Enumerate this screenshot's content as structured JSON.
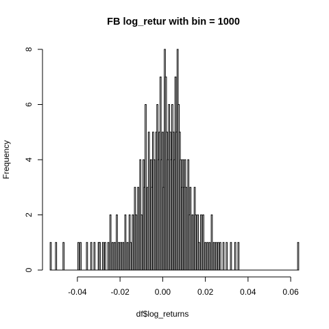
{
  "chart_data": {
    "type": "bar",
    "title": "FB log_retur with bin = 1000",
    "xlabel": "df$log_returns",
    "ylabel": "Frequency",
    "xlim": [
      -0.0525,
      0.0635
    ],
    "ylim": [
      0,
      8
    ],
    "x_ticks": [
      -0.04,
      -0.02,
      0.0,
      0.02,
      0.04,
      0.06
    ],
    "x_tick_labels": [
      "-0.04",
      "-0.02",
      "0.00",
      "0.02",
      "0.04",
      "0.06"
    ],
    "y_ticks": [
      0,
      2,
      4,
      6,
      8
    ],
    "y_tick_labels": [
      "0",
      "2",
      "4",
      "6",
      "8"
    ],
    "grid": false,
    "bars": [
      {
        "x": -0.0525,
        "count": 1
      },
      {
        "x": -0.05,
        "count": 1
      },
      {
        "x": -0.0465,
        "count": 1
      },
      {
        "x": -0.0395,
        "count": 1
      },
      {
        "x": -0.0385,
        "count": 1
      },
      {
        "x": -0.0355,
        "count": 1
      },
      {
        "x": -0.0335,
        "count": 1
      },
      {
        "x": -0.032,
        "count": 1
      },
      {
        "x": -0.03,
        "count": 1
      },
      {
        "x": -0.0295,
        "count": 1
      },
      {
        "x": -0.028,
        "count": 1
      },
      {
        "x": -0.027,
        "count": 1
      },
      {
        "x": -0.0255,
        "count": 1
      },
      {
        "x": -0.0245,
        "count": 2
      },
      {
        "x": -0.0235,
        "count": 1
      },
      {
        "x": -0.0225,
        "count": 1
      },
      {
        "x": -0.0215,
        "count": 2
      },
      {
        "x": -0.0205,
        "count": 1
      },
      {
        "x": -0.0195,
        "count": 1
      },
      {
        "x": -0.0185,
        "count": 1
      },
      {
        "x": -0.0175,
        "count": 2
      },
      {
        "x": -0.0165,
        "count": 1
      },
      {
        "x": -0.0155,
        "count": 2
      },
      {
        "x": -0.015,
        "count": 1
      },
      {
        "x": -0.014,
        "count": 2
      },
      {
        "x": -0.013,
        "count": 3
      },
      {
        "x": -0.0125,
        "count": 2
      },
      {
        "x": -0.0115,
        "count": 3
      },
      {
        "x": -0.0105,
        "count": 4
      },
      {
        "x": -0.01,
        "count": 2
      },
      {
        "x": -0.009,
        "count": 4
      },
      {
        "x": -0.0085,
        "count": 3
      },
      {
        "x": -0.008,
        "count": 6
      },
      {
        "x": -0.007,
        "count": 3
      },
      {
        "x": -0.0065,
        "count": 5
      },
      {
        "x": -0.0055,
        "count": 4
      },
      {
        "x": -0.005,
        "count": 3
      },
      {
        "x": -0.0045,
        "count": 5
      },
      {
        "x": -0.004,
        "count": 4
      },
      {
        "x": -0.003,
        "count": 5
      },
      {
        "x": -0.0025,
        "count": 6
      },
      {
        "x": -0.002,
        "count": 4
      },
      {
        "x": -0.0015,
        "count": 5
      },
      {
        "x": -0.001,
        "count": 7
      },
      {
        "x": -0.0005,
        "count": 4
      },
      {
        "x": 0.0,
        "count": 5
      },
      {
        "x": 0.0005,
        "count": 3
      },
      {
        "x": 0.001,
        "count": 8
      },
      {
        "x": 0.0015,
        "count": 7
      },
      {
        "x": 0.002,
        "count": 5
      },
      {
        "x": 0.0025,
        "count": 4
      },
      {
        "x": 0.003,
        "count": 6
      },
      {
        "x": 0.0035,
        "count": 5
      },
      {
        "x": 0.004,
        "count": 4
      },
      {
        "x": 0.0045,
        "count": 6
      },
      {
        "x": 0.005,
        "count": 5
      },
      {
        "x": 0.0055,
        "count": 4
      },
      {
        "x": 0.006,
        "count": 7
      },
      {
        "x": 0.0065,
        "count": 5
      },
      {
        "x": 0.007,
        "count": 8
      },
      {
        "x": 0.0075,
        "count": 6
      },
      {
        "x": 0.008,
        "count": 5
      },
      {
        "x": 0.0085,
        "count": 4
      },
      {
        "x": 0.009,
        "count": 3
      },
      {
        "x": 0.0095,
        "count": 4
      },
      {
        "x": 0.01,
        "count": 3
      },
      {
        "x": 0.0105,
        "count": 4
      },
      {
        "x": 0.011,
        "count": 3
      },
      {
        "x": 0.012,
        "count": 4
      },
      {
        "x": 0.0125,
        "count": 2
      },
      {
        "x": 0.013,
        "count": 3
      },
      {
        "x": 0.014,
        "count": 2
      },
      {
        "x": 0.015,
        "count": 3
      },
      {
        "x": 0.0155,
        "count": 2
      },
      {
        "x": 0.0165,
        "count": 2
      },
      {
        "x": 0.017,
        "count": 1
      },
      {
        "x": 0.018,
        "count": 2
      },
      {
        "x": 0.019,
        "count": 2
      },
      {
        "x": 0.02,
        "count": 1
      },
      {
        "x": 0.021,
        "count": 1
      },
      {
        "x": 0.022,
        "count": 1
      },
      {
        "x": 0.023,
        "count": 2
      },
      {
        "x": 0.024,
        "count": 1
      },
      {
        "x": 0.025,
        "count": 1
      },
      {
        "x": 0.026,
        "count": 1
      },
      {
        "x": 0.027,
        "count": 1
      },
      {
        "x": 0.0285,
        "count": 1
      },
      {
        "x": 0.03,
        "count": 1
      },
      {
        "x": 0.032,
        "count": 1
      },
      {
        "x": 0.034,
        "count": 1
      },
      {
        "x": 0.0355,
        "count": 1
      },
      {
        "x": 0.0635,
        "count": 1
      }
    ]
  }
}
